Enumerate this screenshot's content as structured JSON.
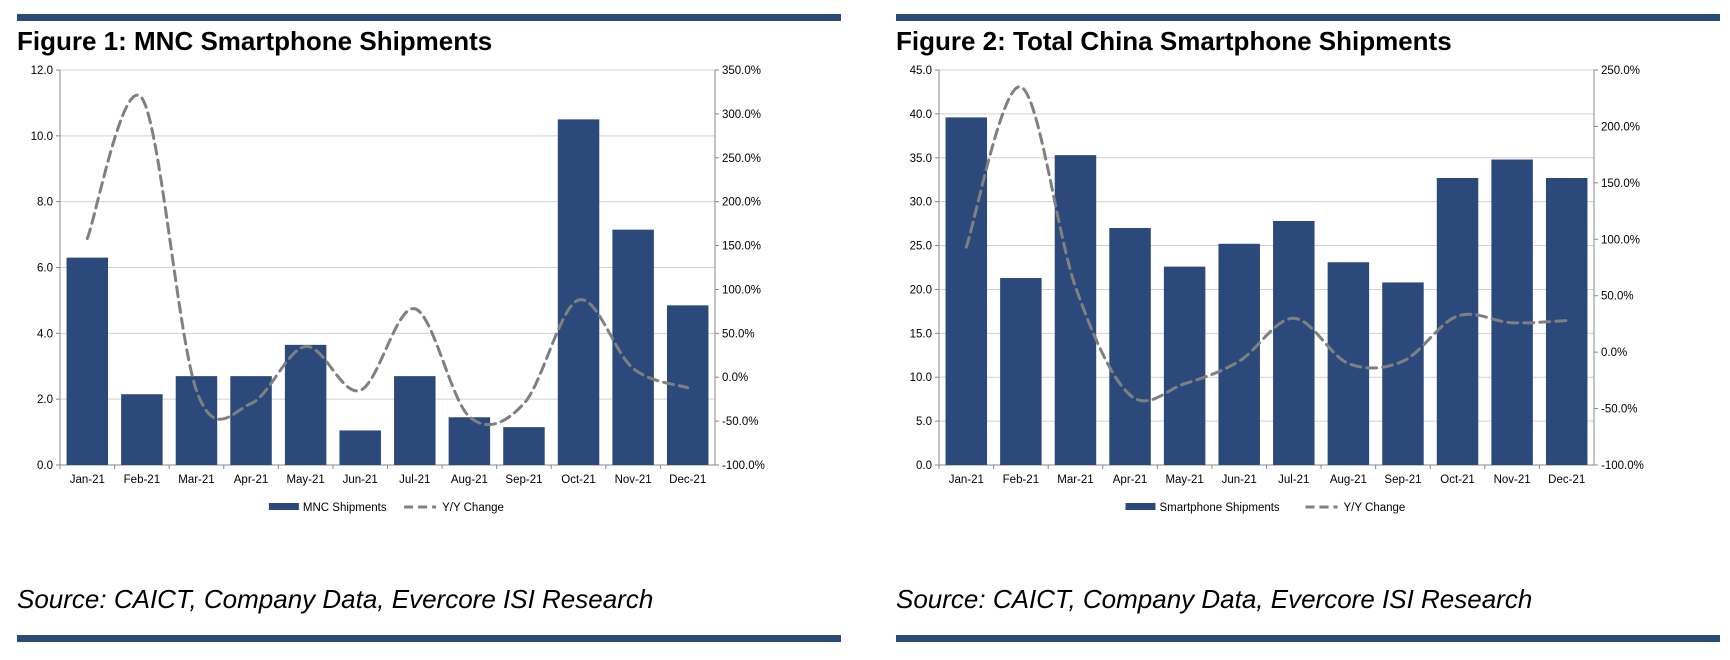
{
  "colors": {
    "bar": "#2b4a7b",
    "line": "#808080",
    "rule": "#2b4a7b",
    "grid": "#d0d0d0"
  },
  "figures": [
    {
      "title": "Figure 1: MNC Smartphone Shipments",
      "source": "Source: CAICT, Company Data, Evercore ISI Research"
    },
    {
      "title": "Figure 2: Total China Smartphone Shipments",
      "source": "Source: CAICT, Company Data, Evercore ISI Research"
    }
  ],
  "chart_data": [
    {
      "type": "bar",
      "title": "",
      "categories": [
        "Jan-21",
        "Feb-21",
        "Mar-21",
        "Apr-21",
        "May-21",
        "Jun-21",
        "Jul-21",
        "Aug-21",
        "Sep-21",
        "Oct-21",
        "Nov-21",
        "Dec-21"
      ],
      "series": [
        {
          "name": "MNC Shipments",
          "type": "bar",
          "axis": "left",
          "values": [
            6.3,
            2.15,
            2.7,
            2.7,
            3.65,
            1.05,
            2.7,
            1.45,
            1.15,
            10.5,
            7.15,
            4.85
          ]
        },
        {
          "name": "Y/Y Change",
          "type": "line",
          "style": "dashed",
          "axis": "right",
          "values": [
            158,
            318,
            -15,
            -30,
            35,
            -15,
            78,
            -45,
            -30,
            88,
            10,
            -12
          ]
        }
      ],
      "y_left": {
        "min": 0,
        "max": 12,
        "step": 2,
        "tick_labels": [
          "0.0",
          "2.0",
          "4.0",
          "6.0",
          "8.0",
          "10.0",
          "12.0"
        ]
      },
      "y_right": {
        "min": -100,
        "max": 350,
        "step": 50,
        "tick_labels": [
          "-100.0%",
          "-50.0%",
          "0.0%",
          "50.0%",
          "100.0%",
          "150.0%",
          "200.0%",
          "250.0%",
          "300.0%",
          "350.0%"
        ]
      },
      "grid": true,
      "legend": "bottom"
    },
    {
      "type": "bar",
      "title": "",
      "categories": [
        "Jan-21",
        "Feb-21",
        "Mar-21",
        "Apr-21",
        "May-21",
        "Jun-21",
        "Jul-21",
        "Aug-21",
        "Sep-21",
        "Oct-21",
        "Nov-21",
        "Dec-21"
      ],
      "series": [
        {
          "name": "Smartphone Shipments",
          "type": "bar",
          "axis": "left",
          "values": [
            39.6,
            21.3,
            35.3,
            27.0,
            22.6,
            25.2,
            27.8,
            23.1,
            20.8,
            32.7,
            34.8,
            32.7
          ]
        },
        {
          "name": "Y/Y Change",
          "type": "line",
          "style": "dashed",
          "axis": "right",
          "values": [
            93,
            235,
            58,
            -38,
            -28,
            -8,
            30,
            -10,
            -8,
            32,
            26,
            28
          ]
        }
      ],
      "y_left": {
        "min": 0,
        "max": 45,
        "step": 5,
        "tick_labels": [
          "0.0",
          "5.0",
          "10.0",
          "15.0",
          "20.0",
          "25.0",
          "30.0",
          "35.0",
          "40.0",
          "45.0"
        ]
      },
      "y_right": {
        "min": -100,
        "max": 250,
        "step": 50,
        "tick_labels": [
          "-100.0%",
          "-50.0%",
          "0.0%",
          "50.0%",
          "100.0%",
          "150.0%",
          "200.0%",
          "250.0%"
        ]
      },
      "grid": true,
      "legend": "bottom"
    }
  ]
}
